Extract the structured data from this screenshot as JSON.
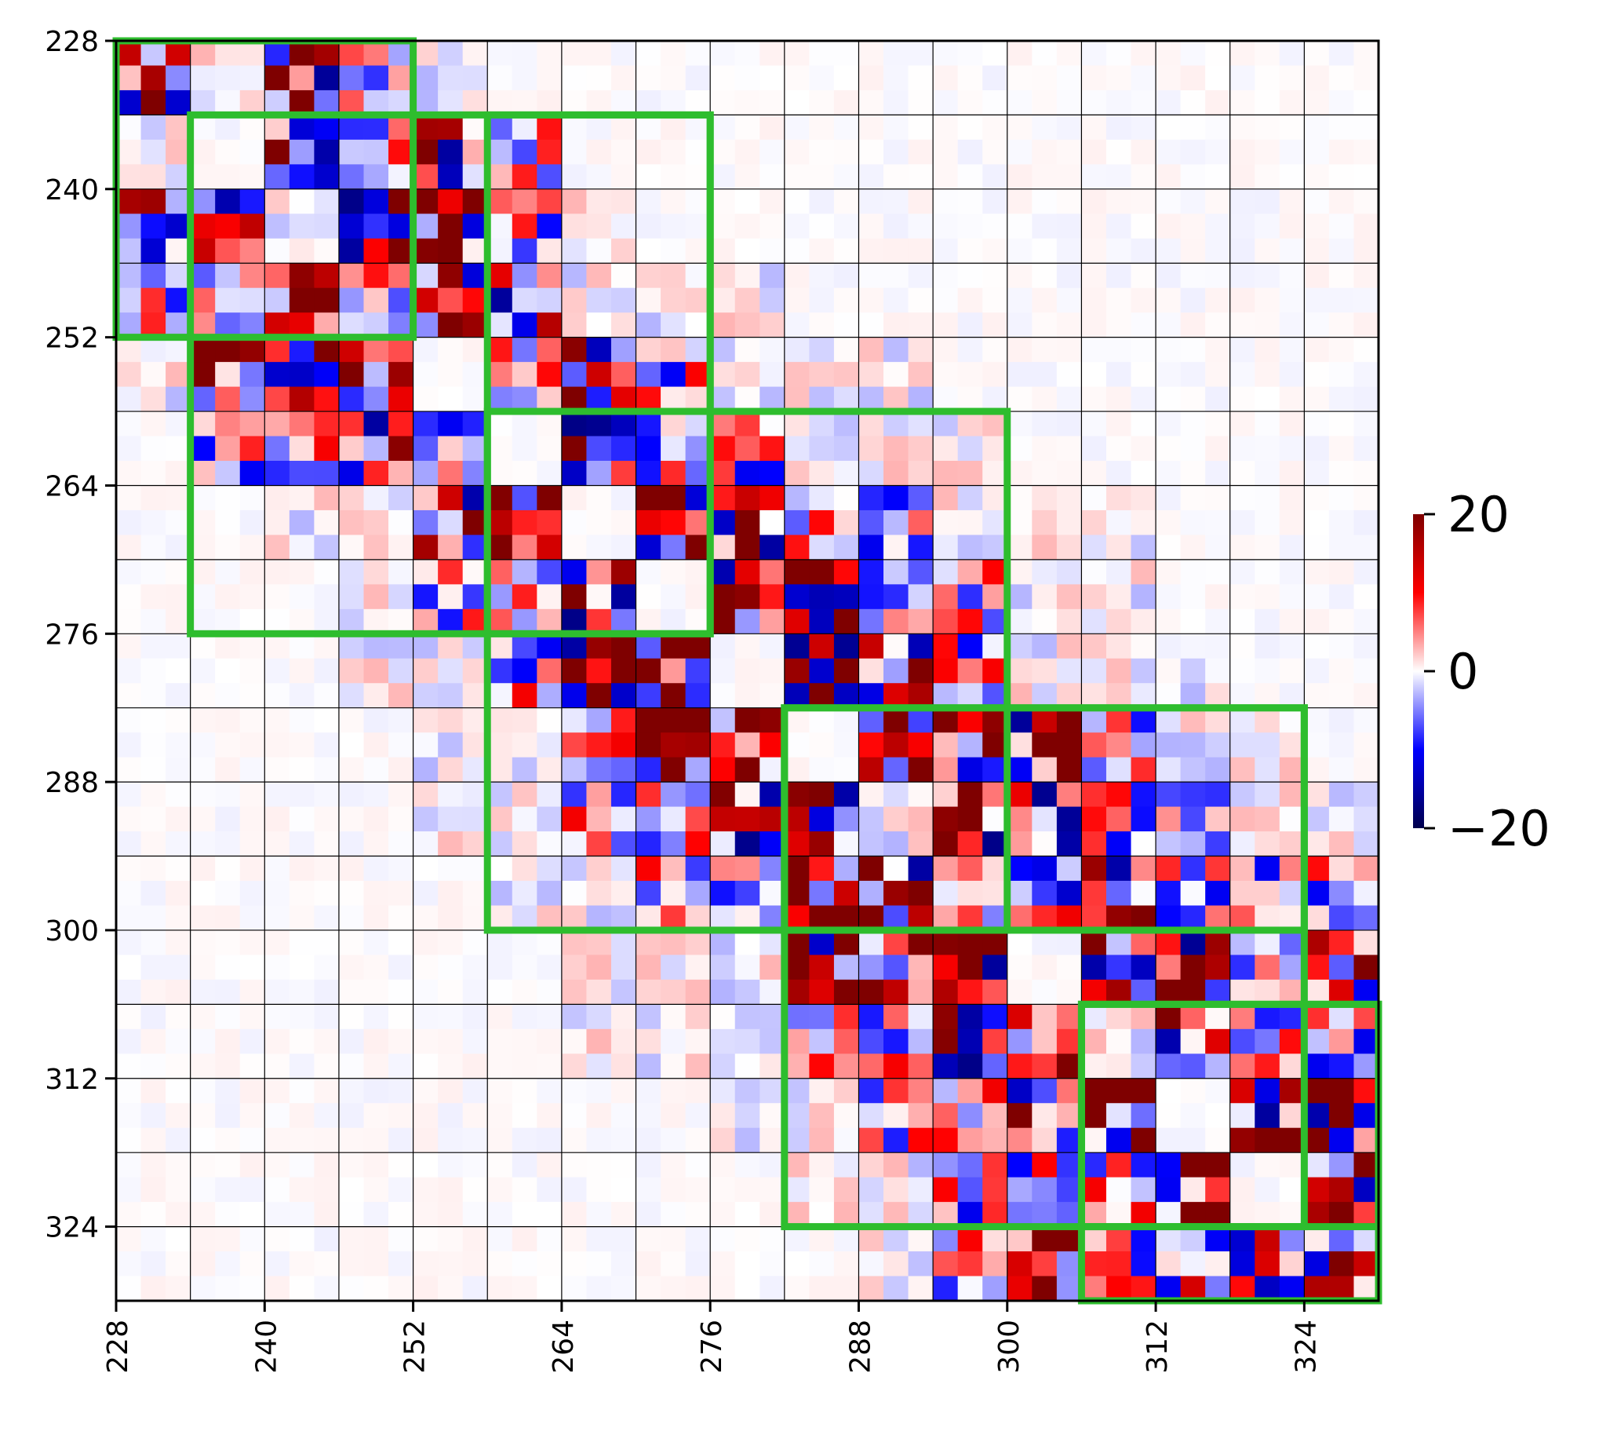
{
  "chart_data": {
    "type": "heatmap",
    "title": "",
    "xlabel": "",
    "ylabel": "",
    "x_range": [
      228,
      330
    ],
    "y_range": [
      228,
      330
    ],
    "y_axis_inverted": true,
    "cell_size": 2,
    "x_ticks": [
      "228",
      "240",
      "252",
      "264",
      "276",
      "288",
      "300",
      "312",
      "324"
    ],
    "y_ticks": [
      "228",
      "240",
      "252",
      "264",
      "276",
      "288",
      "300",
      "312",
      "324"
    ],
    "tick_values": [
      228,
      240,
      252,
      264,
      276,
      288,
      300,
      312,
      324
    ],
    "tick_label_rotation_x": "vertical",
    "grid": true,
    "grid_spacing": 6,
    "colormap": "seismic",
    "colormap_stops": [
      "#00004c",
      "#0000ff",
      "#ffffff",
      "#ff0000",
      "#7f0000"
    ],
    "colorbar": {
      "min": -20,
      "max": 20,
      "tick_values": [
        20,
        0,
        -20
      ],
      "tick_labels": [
        "20",
        "0",
        "−20"
      ],
      "placement": "right"
    },
    "highlight_color": "#2ebd2e",
    "highlight_boxes": [
      {
        "x_range": [
          222,
          252
        ],
        "y_range": [
          222,
          252
        ]
      },
      {
        "x_range": [
          234,
          276
        ],
        "y_range": [
          234,
          276
        ]
      },
      {
        "x_range": [
          258,
          276
        ],
        "y_range": [
          234,
          276
        ]
      },
      {
        "x_range": [
          258,
          300
        ],
        "y_range": [
          258,
          300
        ]
      },
      {
        "x_range": [
          282,
          324
        ],
        "y_range": [
          282,
          300
        ]
      },
      {
        "x_range": [
          282,
          324
        ],
        "y_range": [
          282,
          324
        ]
      },
      {
        "x_range": [
          306,
          330
        ],
        "y_range": [
          306,
          324
        ]
      },
      {
        "x_range": [
          306,
          330
        ],
        "y_range": [
          306,
          336
        ]
      }
    ],
    "blocks": {
      "size": 6,
      "start": 228,
      "intensity_matrix": [
        [
          3,
          1,
          3,
          2,
          1,
          0,
          0,
          0,
          0,
          0,
          0,
          0,
          0,
          0,
          0,
          0,
          0
        ],
        [
          1,
          0,
          3,
          2,
          3,
          2,
          0,
          0,
          0,
          0,
          0,
          0,
          0,
          0,
          0,
          0,
          0
        ],
        [
          3,
          3,
          1,
          3,
          3,
          2,
          1,
          0,
          0,
          0,
          0,
          0,
          0,
          0,
          0,
          0,
          0
        ],
        [
          2,
          2,
          3,
          2,
          3,
          3,
          1,
          1,
          1,
          0,
          0,
          0,
          0,
          0,
          0,
          0,
          0
        ],
        [
          1,
          3,
          3,
          3,
          0,
          2,
          3,
          2,
          1,
          1,
          1,
          0,
          0,
          0,
          0,
          0,
          0
        ],
        [
          0,
          2,
          2,
          3,
          2,
          0,
          3,
          2,
          2,
          1,
          1,
          1,
          0,
          0,
          0,
          0,
          0
        ],
        [
          0,
          0,
          1,
          1,
          3,
          3,
          0,
          3,
          3,
          2,
          2,
          1,
          1,
          1,
          0,
          0,
          0
        ],
        [
          0,
          0,
          0,
          1,
          2,
          2,
          3,
          0,
          3,
          3,
          2,
          2,
          1,
          1,
          0,
          0,
          0
        ],
        [
          0,
          0,
          0,
          1,
          1,
          2,
          3,
          3,
          0,
          3,
          3,
          2,
          1,
          1,
          1,
          0,
          0
        ],
        [
          0,
          0,
          0,
          0,
          1,
          1,
          2,
          3,
          3,
          0,
          3,
          3,
          3,
          2,
          1,
          1,
          0
        ],
        [
          0,
          0,
          0,
          0,
          1,
          1,
          2,
          2,
          3,
          3,
          1,
          3,
          3,
          2,
          2,
          1,
          1
        ],
        [
          0,
          0,
          0,
          0,
          0,
          1,
          1,
          2,
          2,
          3,
          3,
          2,
          3,
          3,
          2,
          2,
          2
        ],
        [
          0,
          0,
          0,
          0,
          0,
          0,
          1,
          1,
          1,
          3,
          3,
          3,
          0,
          3,
          3,
          2,
          3
        ],
        [
          0,
          0,
          0,
          0,
          0,
          0,
          1,
          1,
          1,
          2,
          2,
          3,
          3,
          1,
          3,
          2,
          2
        ],
        [
          0,
          0,
          0,
          0,
          0,
          0,
          0,
          0,
          1,
          1,
          2,
          2,
          3,
          3,
          0,
          3,
          3
        ],
        [
          0,
          0,
          0,
          0,
          0,
          0,
          0,
          0,
          0,
          1,
          1,
          2,
          2,
          2,
          3,
          0,
          3
        ],
        [
          0,
          0,
          0,
          0,
          0,
          0,
          0,
          0,
          0,
          0,
          1,
          2,
          3,
          2,
          3,
          3,
          3
        ]
      ]
    }
  }
}
